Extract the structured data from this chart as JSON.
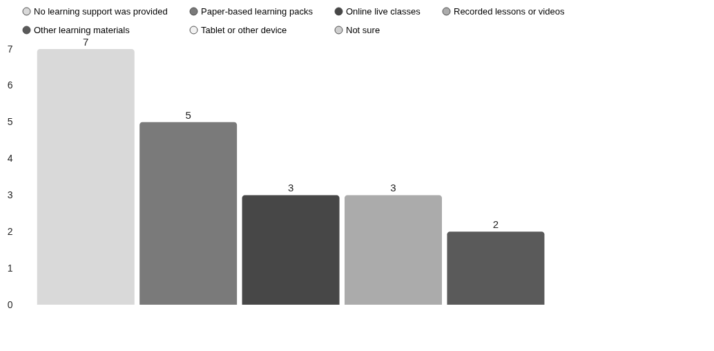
{
  "chart_data": {
    "type": "bar",
    "categories": [
      null
    ],
    "series": [
      {
        "name": "No learning support was provided",
        "color": "#d9d9d9",
        "values": [
          7
        ],
        "value_labels": [
          "7"
        ]
      },
      {
        "name": "Paper-based learning packs",
        "color": "#7a7a7a",
        "values": [
          5
        ],
        "value_labels": [
          "5"
        ]
      },
      {
        "name": "Online live classes",
        "color": "#474747",
        "values": [
          3
        ],
        "value_labels": [
          "3"
        ]
      },
      {
        "name": "Recorded lessons or videos",
        "color": "#ababab",
        "values": [
          3
        ],
        "value_labels": [
          "3"
        ]
      },
      {
        "name": "Other learning materials",
        "color": "#5a5a5a",
        "values": [
          2
        ],
        "value_labels": [
          "2"
        ]
      },
      {
        "name": "Tablet or other device",
        "color": "#f2f2f2",
        "values": [
          0
        ],
        "value_labels": [
          null
        ]
      },
      {
        "name": "Not sure",
        "color": "#cfcfcf",
        "values": [
          0
        ],
        "value_labels": [
          null
        ]
      }
    ],
    "ylim": [
      0,
      7
    ],
    "yticks": [
      0,
      1,
      2,
      3,
      4,
      5,
      6,
      7
    ],
    "tick_labels": "y",
    "legend": "top",
    "grid": false
  }
}
